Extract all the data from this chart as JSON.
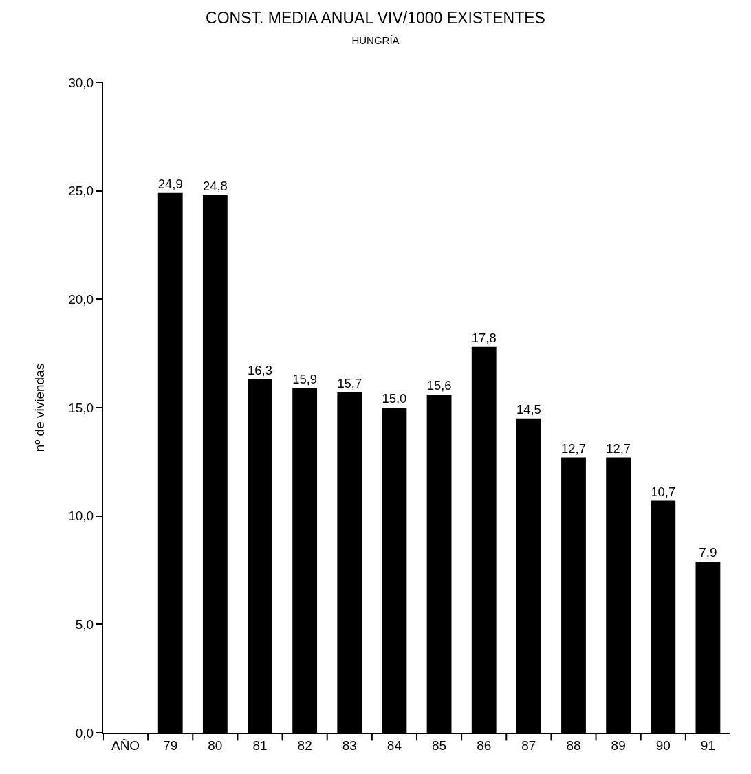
{
  "chart_data": {
    "type": "bar",
    "title": "CONST. MEDIA ANUAL VIV/1000 EXISTENTES",
    "subtitle": "HUNGRÍA",
    "ylabel": "nº de viviendas",
    "categories": [
      "AÑO",
      "79",
      "80",
      "81",
      "82",
      "83",
      "84",
      "85",
      "86",
      "87",
      "88",
      "89",
      "90",
      "91"
    ],
    "values": [
      null,
      24.9,
      24.8,
      16.3,
      15.9,
      15.7,
      15.0,
      15.6,
      17.8,
      14.5,
      12.7,
      12.7,
      10.7,
      7.9
    ],
    "value_labels": [
      null,
      "24,9",
      "24,8",
      "16,3",
      "15,9",
      "15,7",
      "15,0",
      "15,6",
      "17,8",
      "14,5",
      "12,7",
      "12,7",
      "10,7",
      "7,9"
    ],
    "color": "#000000",
    "ylim": [
      0,
      30
    ],
    "yticks": [
      {
        "value": 0,
        "label": "0,0"
      },
      {
        "value": 5,
        "label": "5,0"
      },
      {
        "value": 10,
        "label": "10,0"
      },
      {
        "value": 15,
        "label": "15,0"
      },
      {
        "value": 20,
        "label": "20,0"
      },
      {
        "value": 25,
        "label": "25,0"
      },
      {
        "value": 30,
        "label": "30,0"
      }
    ],
    "grid": false
  }
}
